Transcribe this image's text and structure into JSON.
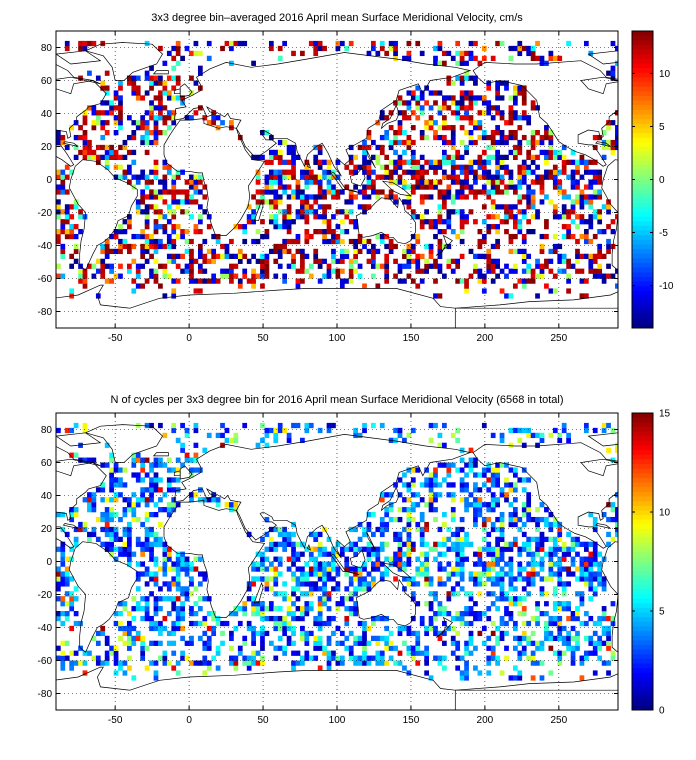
{
  "chart_data": [
    {
      "type": "heatmap",
      "title": "3x3 degree bin–averaged 2016 April mean Surface Meridional Velocity, cm/s",
      "xlim": [
        -90,
        290
      ],
      "ylim": [
        -90,
        90
      ],
      "x_ticks": [
        -50,
        0,
        50,
        100,
        150,
        200,
        250
      ],
      "y_ticks": [
        80,
        60,
        40,
        20,
        0,
        -20,
        -40,
        -60,
        -80
      ],
      "grid": true,
      "bin_size_deg": 3,
      "colorbar": {
        "range": [
          -14,
          14
        ],
        "ticks": [
          10,
          5,
          0,
          -5,
          -10
        ],
        "colormap": "jet"
      },
      "seed": 11
    },
    {
      "type": "heatmap",
      "title": "N of cycles per 3x3 degree bin for 2016 April mean Surface Meridional Velocity (6568 in total)",
      "xlim": [
        -90,
        290
      ],
      "ylim": [
        -90,
        90
      ],
      "x_ticks": [
        -50,
        0,
        50,
        100,
        150,
        200,
        250
      ],
      "y_ticks": [
        80,
        60,
        40,
        20,
        0,
        -20,
        -40,
        -60,
        -80
      ],
      "grid": true,
      "bin_size_deg": 3,
      "total_cycles": 6568,
      "colorbar": {
        "range": [
          0,
          15
        ],
        "ticks": [
          15,
          10,
          5,
          0
        ],
        "colormap": "jet"
      },
      "seed": 23
    }
  ]
}
